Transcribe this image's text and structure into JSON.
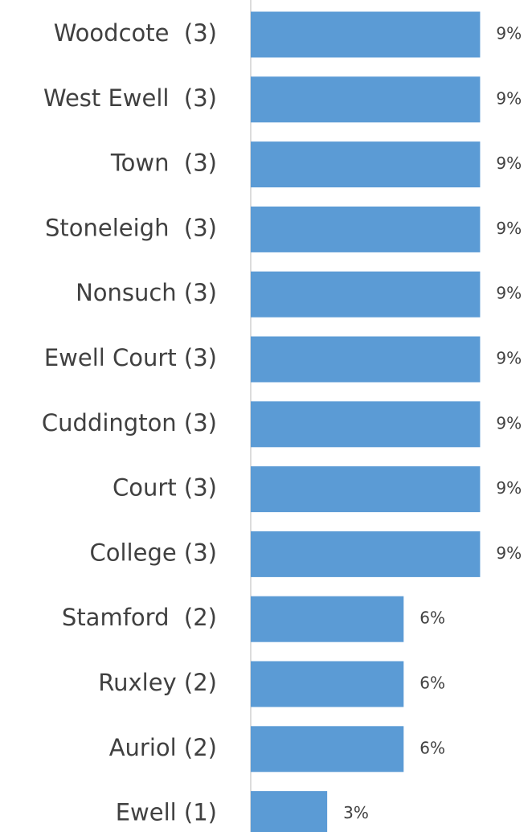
{
  "chart_data": {
    "type": "hbar",
    "categories": [
      "Woodcote  (3)",
      "West Ewell  (3)",
      "Town  (3)",
      "Stoneleigh  (3)",
      "Nonsuch (3)",
      "Ewell Court (3)",
      "Cuddington (3)",
      "Court (3)",
      "College (3)",
      "Stamford  (2)",
      "Ruxley (2)",
      "Auriol (2)",
      "Ewell (1)"
    ],
    "values": [
      9,
      9,
      9,
      9,
      9,
      9,
      9,
      9,
      9,
      6,
      6,
      6,
      3
    ],
    "value_labels": [
      "9%",
      "9%",
      "9%",
      "9%",
      "9%",
      "9%",
      "9%",
      "9%",
      "9%",
      "6%",
      "6%",
      "6%",
      "3%"
    ],
    "color": "#5b9bd5",
    "xlim": [
      0,
      10.5
    ]
  }
}
